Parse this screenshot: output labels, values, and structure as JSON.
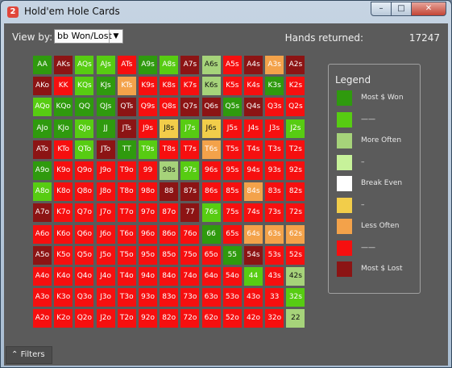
{
  "window": {
    "title": "Hold'em Hole Cards",
    "app_icon": "poker-app-icon",
    "min_glyph": "–",
    "max_glyph": "□",
    "close_glyph": "✕"
  },
  "toolbar": {
    "view_by_label": "View by:",
    "view_by_value": "bb Won/Lost",
    "dropdown_glyph": "▼",
    "hands_label": "Hands returned:",
    "hands_value": "17247"
  },
  "colors": {
    "darkgreen": "#2f9a0e",
    "green": "#57cc12",
    "lightgreen": "#a6d37a",
    "lime": "#c7f29a",
    "white": "#ffffff",
    "yellow": "#f2cd4a",
    "orange": "#f3a24a",
    "red": "#f60f0f",
    "darkred": "#8c1414"
  },
  "grid": {
    "rows": [
      [
        [
          "AA",
          "darkgreen"
        ],
        [
          "AKs",
          "darkred"
        ],
        [
          "AQs",
          "green"
        ],
        [
          "AJs",
          "green"
        ],
        [
          "ATs",
          "red"
        ],
        [
          "A9s",
          "darkgreen"
        ],
        [
          "A8s",
          "green"
        ],
        [
          "A7s",
          "darkred"
        ],
        [
          "A6s",
          "lightgreen"
        ],
        [
          "A5s",
          "red"
        ],
        [
          "A4s",
          "darkred"
        ],
        [
          "A3s",
          "orange"
        ],
        [
          "A2s",
          "darkred"
        ]
      ],
      [
        [
          "AKo",
          "darkred"
        ],
        [
          "KK",
          "red"
        ],
        [
          "KQs",
          "green"
        ],
        [
          "KJs",
          "darkgreen"
        ],
        [
          "KTs",
          "orange"
        ],
        [
          "K9s",
          "red"
        ],
        [
          "K8s",
          "red"
        ],
        [
          "K7s",
          "red"
        ],
        [
          "K6s",
          "lightgreen"
        ],
        [
          "K5s",
          "red"
        ],
        [
          "K4s",
          "red"
        ],
        [
          "K3s",
          "darkgreen"
        ],
        [
          "K2s",
          "red"
        ]
      ],
      [
        [
          "AQo",
          "green"
        ],
        [
          "KQo",
          "darkgreen"
        ],
        [
          "QQ",
          "darkgreen"
        ],
        [
          "QJs",
          "darkgreen"
        ],
        [
          "QTs",
          "darkred"
        ],
        [
          "Q9s",
          "red"
        ],
        [
          "Q8s",
          "red"
        ],
        [
          "Q7s",
          "darkred"
        ],
        [
          "Q6s",
          "darkred"
        ],
        [
          "Q5s",
          "darkgreen"
        ],
        [
          "Q4s",
          "darkred"
        ],
        [
          "Q3s",
          "red"
        ],
        [
          "Q2s",
          "red"
        ]
      ],
      [
        [
          "AJo",
          "darkgreen"
        ],
        [
          "KJo",
          "darkgreen"
        ],
        [
          "QJo",
          "green"
        ],
        [
          "JJ",
          "darkgreen"
        ],
        [
          "JTs",
          "darkred"
        ],
        [
          "J9s",
          "red"
        ],
        [
          "J8s",
          "yellow"
        ],
        [
          "J7s",
          "green"
        ],
        [
          "J6s",
          "yellow"
        ],
        [
          "J5s",
          "red"
        ],
        [
          "J4s",
          "red"
        ],
        [
          "J3s",
          "red"
        ],
        [
          "J2s",
          "green"
        ]
      ],
      [
        [
          "ATo",
          "darkred"
        ],
        [
          "KTo",
          "red"
        ],
        [
          "QTo",
          "green"
        ],
        [
          "JTo",
          "darkred"
        ],
        [
          "TT",
          "darkgreen"
        ],
        [
          "T9s",
          "green"
        ],
        [
          "T8s",
          "red"
        ],
        [
          "T7s",
          "red"
        ],
        [
          "T6s",
          "orange"
        ],
        [
          "T5s",
          "red"
        ],
        [
          "T4s",
          "red"
        ],
        [
          "T3s",
          "red"
        ],
        [
          "T2s",
          "red"
        ]
      ],
      [
        [
          "A9o",
          "darkgreen"
        ],
        [
          "K9o",
          "red"
        ],
        [
          "Q9o",
          "red"
        ],
        [
          "J9o",
          "red"
        ],
        [
          "T9o",
          "red"
        ],
        [
          "99",
          "red"
        ],
        [
          "98s",
          "lightgreen"
        ],
        [
          "97s",
          "green"
        ],
        [
          "96s",
          "red"
        ],
        [
          "95s",
          "red"
        ],
        [
          "94s",
          "red"
        ],
        [
          "93s",
          "red"
        ],
        [
          "92s",
          "red"
        ]
      ],
      [
        [
          "A8o",
          "green"
        ],
        [
          "K8o",
          "red"
        ],
        [
          "Q8o",
          "red"
        ],
        [
          "J8o",
          "red"
        ],
        [
          "T8o",
          "red"
        ],
        [
          "98o",
          "red"
        ],
        [
          "88",
          "darkred"
        ],
        [
          "87s",
          "darkred"
        ],
        [
          "86s",
          "red"
        ],
        [
          "85s",
          "red"
        ],
        [
          "84s",
          "orange"
        ],
        [
          "83s",
          "red"
        ],
        [
          "82s",
          "red"
        ]
      ],
      [
        [
          "A7o",
          "darkred"
        ],
        [
          "K7o",
          "red"
        ],
        [
          "Q7o",
          "red"
        ],
        [
          "J7o",
          "red"
        ],
        [
          "T7o",
          "red"
        ],
        [
          "97o",
          "red"
        ],
        [
          "87o",
          "red"
        ],
        [
          "77",
          "darkred"
        ],
        [
          "76s",
          "green"
        ],
        [
          "75s",
          "red"
        ],
        [
          "74s",
          "red"
        ],
        [
          "73s",
          "red"
        ],
        [
          "72s",
          "red"
        ]
      ],
      [
        [
          "A6o",
          "red"
        ],
        [
          "K6o",
          "red"
        ],
        [
          "Q6o",
          "red"
        ],
        [
          "J6o",
          "red"
        ],
        [
          "T6o",
          "red"
        ],
        [
          "96o",
          "red"
        ],
        [
          "86o",
          "red"
        ],
        [
          "76o",
          "red"
        ],
        [
          "66",
          "darkgreen"
        ],
        [
          "65s",
          "red"
        ],
        [
          "64s",
          "orange"
        ],
        [
          "63s",
          "orange"
        ],
        [
          "62s",
          "orange"
        ]
      ],
      [
        [
          "A5o",
          "darkred"
        ],
        [
          "K5o",
          "red"
        ],
        [
          "Q5o",
          "red"
        ],
        [
          "J5o",
          "red"
        ],
        [
          "T5o",
          "red"
        ],
        [
          "95o",
          "red"
        ],
        [
          "85o",
          "red"
        ],
        [
          "75o",
          "red"
        ],
        [
          "65o",
          "red"
        ],
        [
          "55",
          "darkgreen"
        ],
        [
          "54s",
          "darkred"
        ],
        [
          "53s",
          "red"
        ],
        [
          "52s",
          "red"
        ]
      ],
      [
        [
          "A4o",
          "red"
        ],
        [
          "K4o",
          "red"
        ],
        [
          "Q4o",
          "red"
        ],
        [
          "J4o",
          "red"
        ],
        [
          "T4o",
          "red"
        ],
        [
          "94o",
          "red"
        ],
        [
          "84o",
          "red"
        ],
        [
          "74o",
          "red"
        ],
        [
          "64o",
          "red"
        ],
        [
          "54o",
          "red"
        ],
        [
          "44",
          "green"
        ],
        [
          "43s",
          "red"
        ],
        [
          "42s",
          "lightgreen"
        ]
      ],
      [
        [
          "A3o",
          "red"
        ],
        [
          "K3o",
          "red"
        ],
        [
          "Q3o",
          "red"
        ],
        [
          "J3o",
          "red"
        ],
        [
          "T3o",
          "red"
        ],
        [
          "93o",
          "red"
        ],
        [
          "83o",
          "red"
        ],
        [
          "73o",
          "red"
        ],
        [
          "63o",
          "red"
        ],
        [
          "53o",
          "red"
        ],
        [
          "43o",
          "red"
        ],
        [
          "33",
          "red"
        ],
        [
          "32s",
          "green"
        ]
      ],
      [
        [
          "A2o",
          "red"
        ],
        [
          "K2o",
          "red"
        ],
        [
          "Q2o",
          "red"
        ],
        [
          "J2o",
          "red"
        ],
        [
          "T2o",
          "red"
        ],
        [
          "92o",
          "red"
        ],
        [
          "82o",
          "red"
        ],
        [
          "72o",
          "red"
        ],
        [
          "62o",
          "red"
        ],
        [
          "52o",
          "red"
        ],
        [
          "42o",
          "red"
        ],
        [
          "32o",
          "red"
        ],
        [
          "22",
          "lightgreen"
        ]
      ]
    ]
  },
  "legend": {
    "title": "Legend",
    "items": [
      {
        "label": "Most $ Won",
        "color": "darkgreen"
      },
      {
        "label": "——",
        "color": "green"
      },
      {
        "label": "More Often",
        "color": "lightgreen"
      },
      {
        "label": "–",
        "color": "lime"
      },
      {
        "label": "Break Even",
        "color": "white"
      },
      {
        "label": "–",
        "color": "yellow"
      },
      {
        "label": "Less Often",
        "color": "orange"
      },
      {
        "label": "——",
        "color": "red"
      },
      {
        "label": "Most $ Lost",
        "color": "darkred"
      }
    ]
  },
  "footer": {
    "filters_glyph": "⌃",
    "filters_label": "Filters"
  }
}
